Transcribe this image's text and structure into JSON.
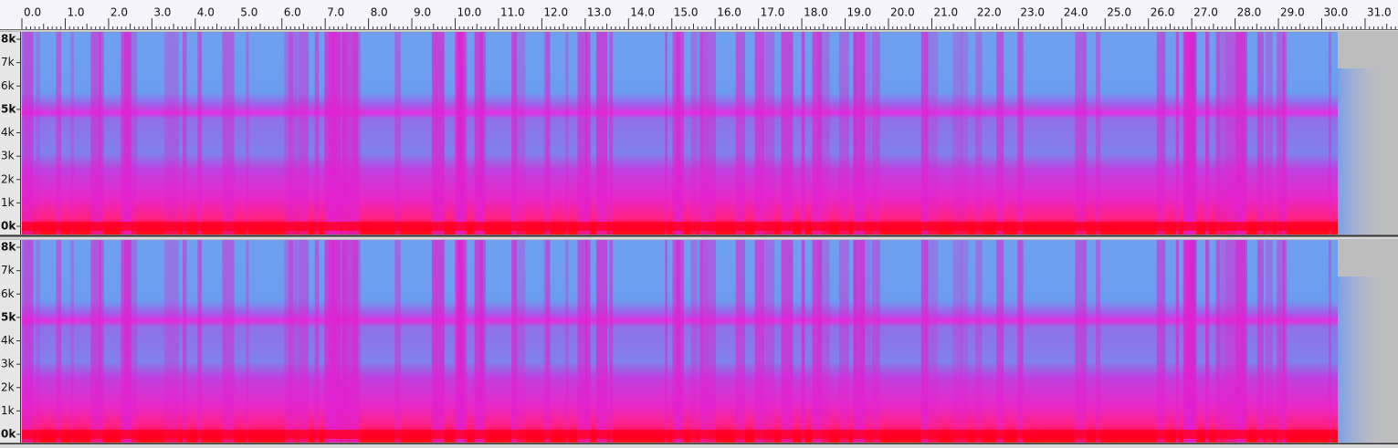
{
  "ruler": {
    "labels": [
      "0.0",
      "1.0",
      "2.0",
      "3.0",
      "4.0",
      "5.0",
      "6.0",
      "7.0",
      "8.0",
      "9.0",
      "10.0",
      "11.0",
      "12.0",
      "13.0",
      "14.0",
      "15.0",
      "16.0",
      "17.0",
      "18.0",
      "19.0",
      "20.0",
      "21.0",
      "22.0",
      "23.0",
      "24.0",
      "25.0",
      "26.0",
      "27.0",
      "28.0",
      "29.0",
      "30.0",
      "31.0"
    ]
  },
  "tracks": [
    {
      "scale_labels": [
        "8k",
        "7k",
        "6k",
        "5k",
        "4k",
        "3k",
        "2k",
        "1k",
        "0k"
      ]
    },
    {
      "scale_labels": [
        "8k",
        "7k",
        "6k",
        "5k",
        "4k",
        "3k",
        "2k",
        "1k",
        "0k"
      ]
    }
  ]
}
